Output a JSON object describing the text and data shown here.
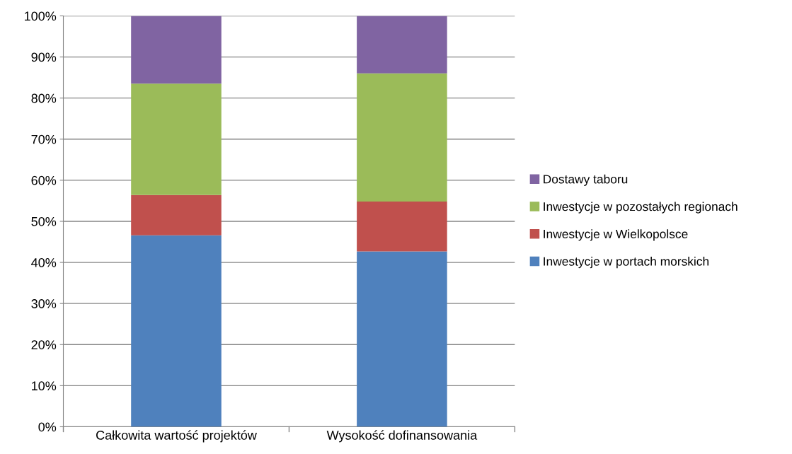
{
  "chart_data": {
    "type": "bar",
    "stacked": true,
    "categories": [
      "Całkowita wartość projektów",
      "Wysokość dofinansowania"
    ],
    "series": [
      {
        "name": "Inwestycje w portach morskich",
        "color": "#4f81bd",
        "values": [
          46.6,
          42.7
        ]
      },
      {
        "name": "Inwestycje w Wielkopolsce",
        "color": "#c0504d",
        "values": [
          9.8,
          12.1
        ]
      },
      {
        "name": "Inwestycje w pozostałych regionach",
        "color": "#9bbb59",
        "values": [
          27.1,
          31.2
        ]
      },
      {
        "name": "Dostawy taboru",
        "color": "#8064a2",
        "values": [
          16.5,
          14.0
        ]
      }
    ],
    "ylim": [
      0,
      100
    ],
    "yticks": [
      {
        "value": 0,
        "label": "0%"
      },
      {
        "value": 10,
        "label": "10%"
      },
      {
        "value": 20,
        "label": "20%"
      },
      {
        "value": 30,
        "label": "30%"
      },
      {
        "value": 40,
        "label": "40%"
      },
      {
        "value": 50,
        "label": "50%"
      },
      {
        "value": 60,
        "label": "60%"
      },
      {
        "value": 70,
        "label": "70%"
      },
      {
        "value": 80,
        "label": "80%"
      },
      {
        "value": 90,
        "label": "90%"
      },
      {
        "value": 100,
        "label": "100%"
      }
    ],
    "grid": "y",
    "legend": "right"
  }
}
